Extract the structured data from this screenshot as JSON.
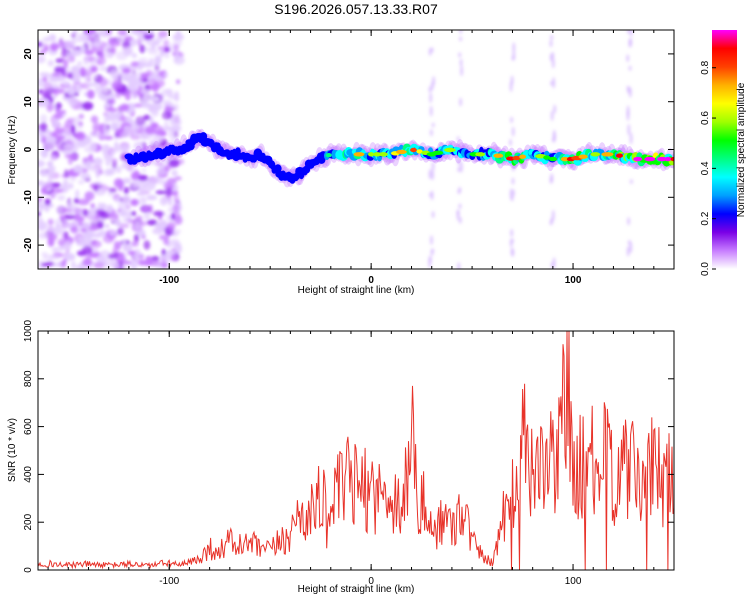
{
  "chart_data": [
    {
      "type": "heatmap",
      "title": "S196.2026.057.13.33.R07",
      "xlabel": "Height of straight line (km)",
      "ylabel": "Frequency (Hz)",
      "xlim": [
        -165,
        150
      ],
      "ylim": [
        -25,
        25
      ],
      "xticks": [
        -100,
        0,
        100
      ],
      "yticks": [
        -20,
        -10,
        0,
        10,
        20
      ],
      "colorbar": {
        "label": "Normalized spectral amplitude",
        "range": [
          0,
          0.95
        ],
        "ticks": [
          0.0,
          0.2,
          0.4,
          0.6,
          0.8
        ],
        "colors": [
          "#ffffff",
          "#c77dff",
          "#7a00e6",
          "#0000ff",
          "#00a0ff",
          "#00ffff",
          "#00ff80",
          "#00ff00",
          "#a0ff00",
          "#ffff00",
          "#ffb000",
          "#ff4000",
          "#ff0000",
          "#ff00ff"
        ]
      },
      "ridge": {
        "description_points_km": [
          -120,
          -95,
          -90,
          -85,
          -80,
          -75,
          -70,
          -65,
          -60,
          -55,
          -50,
          -45,
          -40,
          -35,
          -30,
          -25,
          -20,
          -10,
          0,
          10,
          20,
          30,
          40,
          50,
          60,
          70,
          80,
          90,
          100,
          110,
          120,
          130,
          140,
          150
        ],
        "frequency_hz": [
          -2,
          0,
          1,
          3,
          1,
          0,
          -1,
          -1,
          -2,
          -1,
          -3,
          -5,
          -6,
          -5,
          -3,
          -2,
          -1,
          -1,
          -1,
          -1,
          0,
          -1,
          0,
          -1,
          -1,
          -2,
          -1,
          -2,
          -2,
          -1,
          -1,
          -2,
          -2,
          -2
        ],
        "amplitude": [
          0.25,
          0.2,
          0.3,
          0.35,
          0.3,
          0.3,
          0.3,
          0.35,
          0.35,
          0.3,
          0.3,
          0.3,
          0.35,
          0.3,
          0.3,
          0.35,
          0.5,
          0.8,
          0.6,
          0.6,
          0.8,
          0.5,
          0.6,
          0.5,
          0.7,
          0.9,
          0.6,
          0.5,
          0.9,
          0.6,
          0.8,
          0.95,
          0.95,
          0.9
        ]
      },
      "noise_region_km": [
        -165,
        -95
      ]
    },
    {
      "type": "line",
      "xlabel": "Height of straight line (km)",
      "ylabel": "SNR (10 * v/v)",
      "xlim": [
        -165,
        150
      ],
      "ylim": [
        0,
        1000
      ],
      "xticks": [
        -100,
        0,
        100
      ],
      "yticks": [
        0,
        200,
        400,
        600,
        800,
        1000
      ],
      "series": [
        {
          "name": "SNR",
          "color": "#e8332a",
          "x": [
            -165,
            -150,
            -140,
            -130,
            -120,
            -110,
            -100,
            -95,
            -90,
            -85,
            -80,
            -75,
            -70,
            -65,
            -60,
            -55,
            -50,
            -45,
            -40,
            -35,
            -30,
            -25,
            -22,
            -20,
            -15,
            -10,
            -5,
            0,
            5,
            10,
            15,
            18,
            20,
            23,
            25,
            30,
            35,
            40,
            45,
            50,
            55,
            60,
            63,
            66,
            70,
            73,
            75,
            78,
            80,
            83,
            85,
            88,
            90,
            92,
            94,
            95,
            96,
            97,
            98,
            99,
            100,
            102,
            105,
            110,
            115,
            120,
            125,
            130,
            135,
            140,
            145,
            150
          ],
          "y": [
            30,
            20,
            25,
            20,
            25,
            20,
            30,
            20,
            30,
            50,
            90,
            80,
            120,
            100,
            110,
            90,
            80,
            120,
            150,
            250,
            220,
            350,
            200,
            280,
            330,
            380,
            320,
            350,
            300,
            330,
            250,
            420,
            650,
            200,
            300,
            150,
            220,
            180,
            280,
            120,
            60,
            30,
            150,
            250,
            400,
            310,
            520,
            480,
            400,
            380,
            580,
            450,
            420,
            390,
            580,
            980,
            350,
            900,
            1000,
            600,
            350,
            380,
            480,
            440,
            470,
            390,
            420,
            400,
            380,
            430,
            390,
            410
          ]
        }
      ]
    }
  ]
}
